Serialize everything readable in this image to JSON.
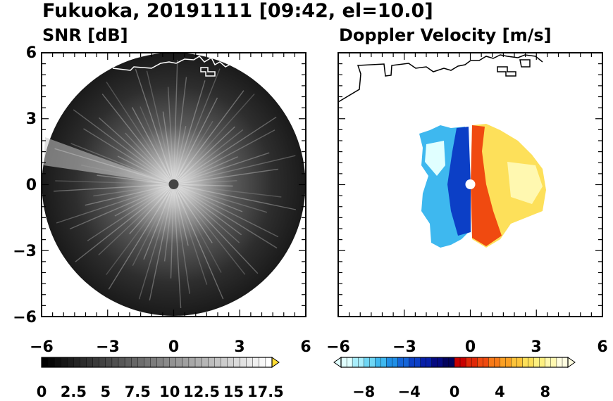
{
  "title": "Fukuoka, 20191111 [09:42, el=10.0]",
  "chart_data": [
    {
      "type": "heatmap",
      "title": "SNR [dB]",
      "xlim": [
        -6,
        6
      ],
      "ylim": [
        -6,
        6
      ],
      "xticks": [
        "−6",
        "−3",
        "0",
        "3",
        "6"
      ],
      "yticks": [
        "6",
        "3",
        "0",
        "−3",
        "−6"
      ],
      "colorbar": {
        "colormap": "grayscale",
        "range": [
          0,
          18
        ],
        "extend": "max",
        "labels": [
          "0",
          "2.5",
          "5",
          "7.5",
          "10",
          "12.5",
          "15",
          "17.5"
        ],
        "low_color": "#000000",
        "high_color": "#ffffff",
        "extend_color": "#ffdd33"
      }
    },
    {
      "type": "heatmap",
      "title": "Doppler Velocity [m/s]",
      "xlim": [
        -6,
        6
      ],
      "ylim": [
        -6,
        6
      ],
      "xticks": [
        "−6",
        "−3",
        "0",
        "3",
        "6"
      ],
      "yticks": [],
      "colorbar": {
        "colormap": "diverging blue-red",
        "range": [
          -10,
          10
        ],
        "extend": "both",
        "labels": [
          "−8",
          "−4",
          "0",
          "4",
          "8"
        ],
        "colors": [
          "#e0ffff",
          "#a8eefc",
          "#6fd6f4",
          "#3eb8ef",
          "#1f8fe6",
          "#1565d8",
          "#0c3fc6",
          "#071fa8",
          "#050a80",
          "#03035c",
          "#c80000",
          "#e02808",
          "#f04a10",
          "#f87a18",
          "#fca024",
          "#fdc43a",
          "#fde05a",
          "#fef080",
          "#fff8b0",
          "#fffde0"
        ]
      }
    }
  ]
}
